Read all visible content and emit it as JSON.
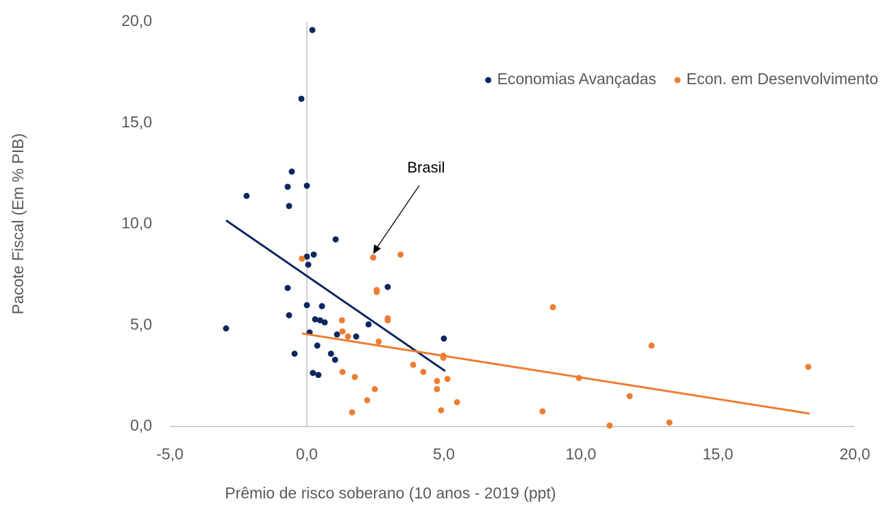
{
  "chart_data": {
    "type": "scatter",
    "xlabel": "Prêmio de risco soberano (10 anos - 2019 (ppt)",
    "ylabel": "Pacote Fiscal (Em % PIB)",
    "annotation": "Brasil",
    "legend": "upper right",
    "xlim": [
      -5,
      20
    ],
    "ylim": [
      0,
      20
    ],
    "xticks": [
      {
        "value": -5,
        "label": "-5,0"
      },
      {
        "value": 0,
        "label": "0,0"
      },
      {
        "value": 5,
        "label": "5,0"
      },
      {
        "value": 10,
        "label": "10,0"
      },
      {
        "value": 15,
        "label": "15,0"
      },
      {
        "value": 20,
        "label": "20,0"
      }
    ],
    "yticks": [
      {
        "value": 0,
        "label": "0,0"
      },
      {
        "value": 5,
        "label": "5,0"
      },
      {
        "value": 10,
        "label": "10,0"
      },
      {
        "value": 15,
        "label": "15,0"
      },
      {
        "value": 20,
        "label": "20,0"
      }
    ],
    "series": [
      {
        "name": "Economias Avançadas",
        "color": "#0b2660",
        "x": [
          0.2,
          -0.2,
          -0.55,
          -0.7,
          0,
          -2.2,
          -0.65,
          1.05,
          0.25,
          0,
          0.05,
          2.95,
          -0.7,
          0,
          0.55,
          -0.65,
          0.3,
          0.48,
          0.65,
          2.25,
          -2.95,
          0.1,
          1.1,
          1.8,
          5.0,
          0.38,
          -0.45,
          0.88,
          1.03,
          0.22,
          0.42
        ],
        "y": [
          19.6,
          16.2,
          12.6,
          11.85,
          11.9,
          11.4,
          10.9,
          9.25,
          8.5,
          8.4,
          8.0,
          6.9,
          6.85,
          6.0,
          5.95,
          5.5,
          5.3,
          5.25,
          5.15,
          5.05,
          4.85,
          4.65,
          4.55,
          4.45,
          4.35,
          4.0,
          3.6,
          3.6,
          3.3,
          2.65,
          2.55
        ]
      },
      {
        "name": "Econ. em Desenvolvimento",
        "color": "#ed7d31",
        "x": [
          -0.18,
          2.42,
          3.42,
          2.55,
          2.55,
          8.98,
          2.95,
          2.95,
          1.28,
          1.3,
          1.5,
          2.62,
          12.58,
          4.98,
          4.98,
          3.88,
          18.3,
          1.3,
          4.25,
          1.75,
          9.93,
          5.13,
          4.75,
          4.75,
          2.48,
          11.78,
          2.2,
          5.48,
          4.9,
          8.6,
          1.65,
          13.23,
          11.05
        ],
        "y": [
          8.3,
          8.35,
          8.5,
          6.75,
          6.65,
          5.9,
          5.35,
          5.25,
          5.25,
          4.7,
          4.45,
          4.2,
          4.0,
          3.5,
          3.4,
          3.05,
          2.95,
          2.7,
          2.7,
          2.45,
          2.4,
          2.35,
          2.25,
          1.85,
          1.85,
          1.5,
          1.3,
          1.2,
          0.8,
          0.75,
          0.7,
          0.2,
          0.05
        ]
      }
    ],
    "trendlines": [
      {
        "color": "#0b2660",
        "x": [
          -2.95,
          5.05
        ],
        "y": [
          10.19,
          2.74
        ]
      },
      {
        "color": "#ed7d31",
        "x": [
          -0.18,
          18.35
        ],
        "y": [
          4.6,
          0.64
        ]
      }
    ]
  }
}
